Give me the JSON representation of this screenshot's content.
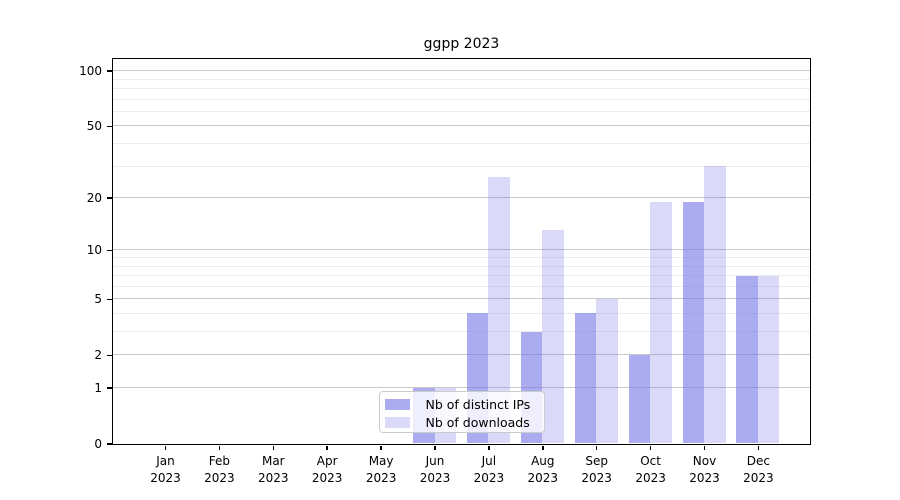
{
  "chart_data": {
    "type": "bar",
    "title": "ggpp 2023",
    "year_label": "2023",
    "categories": [
      "Jan",
      "Feb",
      "Mar",
      "Apr",
      "May",
      "Jun",
      "Jul",
      "Aug",
      "Sep",
      "Oct",
      "Nov",
      "Dec"
    ],
    "series": [
      {
        "name": "Nb of distinct IPs",
        "color": "rgba(119,119,230,0.62)",
        "values": [
          0,
          0,
          0,
          0,
          0,
          1,
          4,
          3,
          4,
          2,
          19,
          7
        ]
      },
      {
        "name": "Nb of downloads",
        "color": "rgba(119,119,230,0.27)",
        "values": [
          0,
          0,
          0,
          0,
          0,
          1,
          26,
          13,
          5,
          19,
          30,
          7
        ]
      }
    ],
    "y_axis": {
      "scale": "log1p",
      "ticks": [
        0,
        1,
        2,
        5,
        10,
        20,
        50,
        100
      ],
      "minor_ticks": [
        3,
        4,
        6,
        7,
        8,
        9,
        30,
        40,
        60,
        70,
        80,
        90
      ],
      "range": [
        0,
        100
      ]
    },
    "x_axis": {
      "label_format": "month over year"
    },
    "legend": {
      "position": "bottom-center",
      "entries": [
        "Nb of distinct IPs",
        "Nb of downloads"
      ]
    },
    "grid": "on",
    "colors": {
      "grid_major": "#c9c9c9",
      "grid_minor": "#ededed",
      "spine": "#000000",
      "background": "#ffffff"
    }
  }
}
